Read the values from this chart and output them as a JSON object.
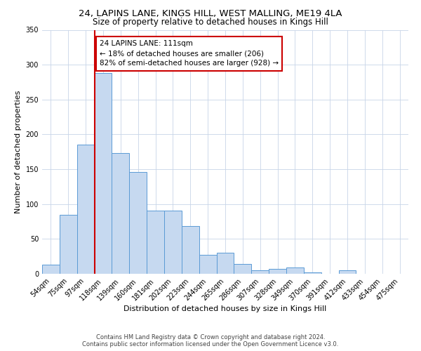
{
  "title1": "24, LAPINS LANE, KINGS HILL, WEST MALLING, ME19 4LA",
  "title2": "Size of property relative to detached houses in Kings Hill",
  "xlabel": "Distribution of detached houses by size in Kings Hill",
  "ylabel": "Number of detached properties",
  "bar_labels": [
    "54sqm",
    "75sqm",
    "97sqm",
    "118sqm",
    "139sqm",
    "160sqm",
    "181sqm",
    "202sqm",
    "223sqm",
    "244sqm",
    "265sqm",
    "286sqm",
    "307sqm",
    "328sqm",
    "349sqm",
    "370sqm",
    "391sqm",
    "412sqm",
    "433sqm",
    "454sqm",
    "475sqm"
  ],
  "bar_values": [
    13,
    85,
    185,
    288,
    173,
    146,
    91,
    91,
    68,
    27,
    30,
    14,
    5,
    7,
    9,
    2,
    0,
    5,
    0,
    0,
    0
  ],
  "bar_color": "#c6d9f0",
  "bar_edge_color": "#5b9bd5",
  "vline_color": "#cc0000",
  "vline_x": 2.5,
  "annotation_text": "24 LAPINS LANE: 111sqm\n← 18% of detached houses are smaller (206)\n82% of semi-detached houses are larger (928) →",
  "annotation_box_color": "#cc0000",
  "ylim": [
    0,
    350
  ],
  "yticks": [
    0,
    50,
    100,
    150,
    200,
    250,
    300,
    350
  ],
  "footer1": "Contains HM Land Registry data © Crown copyright and database right 2024.",
  "footer2": "Contains public sector information licensed under the Open Government Licence v3.0.",
  "bg_color": "#ffffff",
  "grid_color": "#c8d4e8",
  "title1_fontsize": 9.5,
  "title2_fontsize": 8.5,
  "xlabel_fontsize": 8,
  "ylabel_fontsize": 8,
  "tick_fontsize": 7,
  "annot_fontsize": 7.5,
  "footer_fontsize": 6
}
